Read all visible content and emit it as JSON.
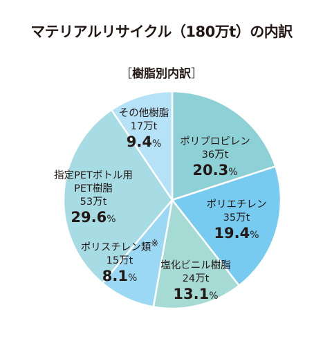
{
  "title": "マテリアルリサイクル（180万t）の内訳",
  "subtitle": "樹脂別内訳",
  "chart_data": {
    "type": "pie",
    "title": "マテリアルリサイクル（180万t）の内訳",
    "subtitle": "樹脂別内訳",
    "unit": "万t",
    "slices": [
      {
        "label": "ポリプロピレン",
        "amount": "36万t",
        "value": 36,
        "percent": "20.3%",
        "color": "#8dd0d6"
      },
      {
        "label": "ポリエチレン",
        "amount": "35万t",
        "value": 35,
        "percent": "19.4%",
        "color": "#77caf0"
      },
      {
        "label": "塩化ビニル樹脂",
        "amount": "24万t",
        "value": 24,
        "percent": "13.1%",
        "color": "#a6dbd5"
      },
      {
        "label": "ポリスチレン類",
        "note_mark": "※",
        "amount": "15万t",
        "value": 15,
        "percent": "8.1%",
        "color": "#9bd8f4"
      },
      {
        "label_lines": [
          "指定PETボトル用",
          "PET樹脂"
        ],
        "amount": "53万t",
        "value": 53,
        "percent": "29.6%",
        "color": "#a8dce4"
      },
      {
        "label": "その他樹脂",
        "amount": "17万t",
        "value": 17,
        "percent": "9.4%",
        "color": "#b5e2f7"
      }
    ]
  }
}
